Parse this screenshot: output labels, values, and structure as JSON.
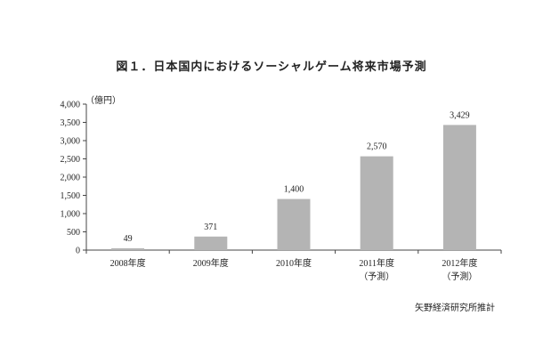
{
  "chart_data": {
    "type": "bar",
    "title": "図１．日本国内におけるソーシャルゲーム将来市場予測",
    "unit_label": "（億円）",
    "categories": [
      "2008年度",
      "2009年度",
      "2010年度",
      "2011年度",
      "2012年度"
    ],
    "category_notes": [
      "",
      "",
      "",
      "（予測）",
      "（予測）"
    ],
    "values": [
      49,
      371,
      1400,
      2570,
      3429
    ],
    "data_labels": [
      "49",
      "371",
      "1,400",
      "2,570",
      "3,429"
    ],
    "yticks": [
      "0",
      "500",
      "1,000",
      "1,500",
      "2,000",
      "2,500",
      "3,000",
      "3,500",
      "4,000"
    ],
    "ylim": [
      0,
      4000
    ],
    "bar_color": "#b4b4b4",
    "grid": false,
    "legend": "none"
  },
  "source": "矢野経済研究所推計"
}
